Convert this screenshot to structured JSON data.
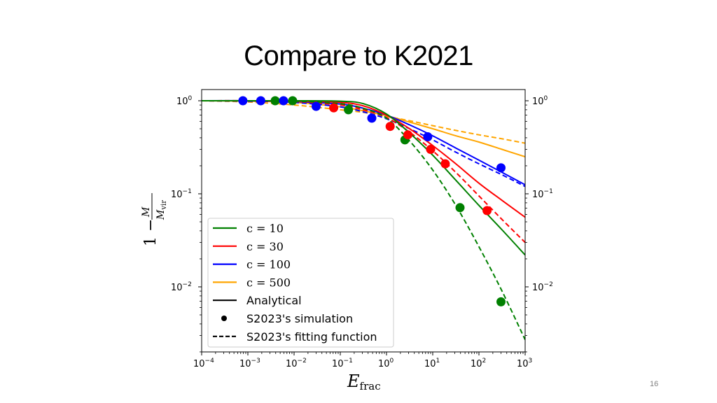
{
  "slide": {
    "title": "Compare to K2021",
    "page_number": "16"
  },
  "chart_data": {
    "type": "line",
    "title": "",
    "xlabel": "E_frac",
    "ylabel": "1 - M/M_vir",
    "xscale": "log",
    "yscale": "log",
    "xlim": [
      0.0001,
      1000
    ],
    "ylim": [
      0.00204,
      1.2
    ],
    "x_ticks": [
      {
        "value": 0.0001,
        "base": "10",
        "exp": "−4"
      },
      {
        "value": 0.001,
        "base": "10",
        "exp": "−3"
      },
      {
        "value": 0.01,
        "base": "10",
        "exp": "−2"
      },
      {
        "value": 0.1,
        "base": "10",
        "exp": "−1"
      },
      {
        "value": 1,
        "base": "10",
        "exp": "0"
      },
      {
        "value": 10,
        "base": "10",
        "exp": "1"
      },
      {
        "value": 100,
        "base": "10",
        "exp": "2"
      },
      {
        "value": 1000,
        "base": "10",
        "exp": "3"
      }
    ],
    "y_ticks": [
      {
        "value": 1,
        "base": "10",
        "exp": "0"
      },
      {
        "value": 0.1,
        "base": "10",
        "exp": "−1"
      },
      {
        "value": 0.01,
        "base": "10",
        "exp": "−2"
      }
    ],
    "legend": {
      "placement": "lower-left",
      "entries": [
        {
          "label": "c = 10",
          "color": "#008000",
          "style": "solid",
          "math": true
        },
        {
          "label": "c = 30",
          "color": "#ff0000",
          "style": "solid",
          "math": true
        },
        {
          "label": "c = 100",
          "color": "#0000ff",
          "style": "solid",
          "math": true
        },
        {
          "label": "c = 500",
          "color": "#ffa500",
          "style": "solid",
          "math": true
        },
        {
          "label": "Analytical",
          "color": "#000000",
          "style": "solid",
          "math": false
        },
        {
          "label": "S2023's simulation",
          "color": "#000000",
          "style": "dot",
          "math": false
        },
        {
          "label": "S2023's fitting function",
          "color": "#000000",
          "style": "dashed",
          "math": false
        }
      ]
    },
    "curve_x": [
      0.0001,
      0.001,
      0.01,
      0.1,
      0.316,
      1,
      3.16,
      10,
      31.6,
      100,
      316,
      1000
    ],
    "series": [
      {
        "name": "c=500 analytical",
        "color": "#ffa500",
        "style": "solid",
        "values": [
          1,
          0.99,
          0.96,
          0.86,
          0.78,
          0.69,
          0.59,
          0.5,
          0.42,
          0.36,
          0.3,
          0.25
        ]
      },
      {
        "name": "c=500 fitting",
        "color": "#ffa500",
        "style": "dashed",
        "values": [
          1,
          0.97,
          0.9,
          0.8,
          0.75,
          0.68,
          0.61,
          0.54,
          0.48,
          0.43,
          0.39,
          0.35
        ]
      },
      {
        "name": "c=100 analytical",
        "color": "#0000ff",
        "style": "solid",
        "values": [
          1,
          1,
          0.98,
          0.92,
          0.83,
          0.7,
          0.55,
          0.42,
          0.31,
          0.23,
          0.17,
          0.125
        ]
      },
      {
        "name": "c=100 fitting",
        "color": "#0000ff",
        "style": "dashed",
        "values": [
          1,
          0.99,
          0.96,
          0.86,
          0.76,
          0.64,
          0.5,
          0.38,
          0.28,
          0.21,
          0.16,
          0.12
        ]
      },
      {
        "name": "c=30 analytical",
        "color": "#ff0000",
        "style": "solid",
        "values": [
          1,
          1,
          0.99,
          0.96,
          0.88,
          0.7,
          0.5,
          0.33,
          0.21,
          0.13,
          0.085,
          0.056
        ]
      },
      {
        "name": "c=30 fitting",
        "color": "#ff0000",
        "style": "dashed",
        "values": [
          1,
          1,
          0.98,
          0.9,
          0.8,
          0.66,
          0.46,
          0.29,
          0.17,
          0.095,
          0.053,
          0.03
        ]
      },
      {
        "name": "c=10 analytical",
        "color": "#008000",
        "style": "solid",
        "values": [
          1,
          1,
          1,
          0.99,
          0.93,
          0.72,
          0.45,
          0.26,
          0.14,
          0.075,
          0.041,
          0.022
        ]
      },
      {
        "name": "c=10 fitting",
        "color": "#008000",
        "style": "dashed",
        "values": [
          1,
          1,
          0.99,
          0.93,
          0.83,
          0.65,
          0.37,
          0.18,
          0.075,
          0.027,
          0.009,
          0.0027
        ]
      }
    ],
    "simulation_points": [
      {
        "c": 100,
        "color": "#0000ff",
        "x": 0.00078,
        "y": 1.0
      },
      {
        "c": 100,
        "color": "#0000ff",
        "x": 0.0019,
        "y": 1.0
      },
      {
        "c": 10,
        "color": "#008000",
        "x": 0.0039,
        "y": 1.0
      },
      {
        "c": 100,
        "color": "#0000ff",
        "x": 0.0059,
        "y": 1.0
      },
      {
        "c": 10,
        "color": "#008000",
        "x": 0.0093,
        "y": 1.0
      },
      {
        "c": 100,
        "color": "#0000ff",
        "x": 0.03,
        "y": 0.87
      },
      {
        "c": 30,
        "color": "#ff0000",
        "x": 0.072,
        "y": 0.84
      },
      {
        "c": 10,
        "color": "#008000",
        "x": 0.15,
        "y": 0.8
      },
      {
        "c": 100,
        "color": "#0000ff",
        "x": 0.48,
        "y": 0.65
      },
      {
        "c": 30,
        "color": "#ff0000",
        "x": 1.2,
        "y": 0.53
      },
      {
        "c": 10,
        "color": "#008000",
        "x": 2.5,
        "y": 0.38
      },
      {
        "c": 30,
        "color": "#ff0000",
        "x": 2.9,
        "y": 0.43
      },
      {
        "c": 100,
        "color": "#0000ff",
        "x": 7.8,
        "y": 0.41
      },
      {
        "c": 30,
        "color": "#ff0000",
        "x": 9.0,
        "y": 0.3
      },
      {
        "c": 30,
        "color": "#ff0000",
        "x": 18.7,
        "y": 0.21
      },
      {
        "c": 10,
        "color": "#008000",
        "x": 39,
        "y": 0.071
      },
      {
        "c": 30,
        "color": "#ff0000",
        "x": 150,
        "y": 0.066
      },
      {
        "c": 100,
        "color": "#0000ff",
        "x": 300,
        "y": 0.19
      },
      {
        "c": 10,
        "color": "#008000",
        "x": 300,
        "y": 0.0069
      }
    ]
  }
}
